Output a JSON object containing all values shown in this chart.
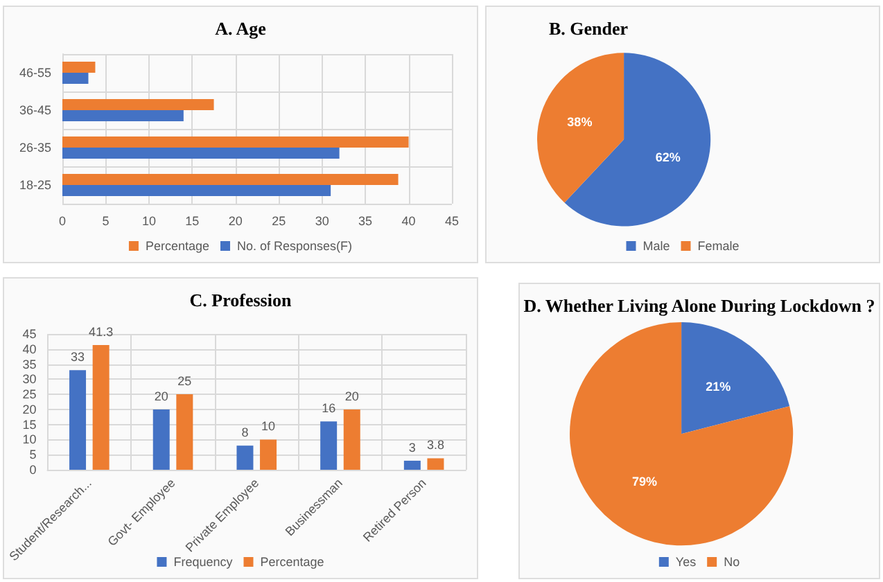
{
  "chart_data": [
    {
      "type": "bar",
      "title": "A. Age",
      "orientation": "horizontal",
      "categories": [
        "46-55",
        "36-45",
        "26-35",
        "18-25"
      ],
      "series": [
        {
          "name": "Percentage",
          "color": "#ed7d31",
          "values": [
            3.8,
            17.5,
            40,
            38.8
          ]
        },
        {
          "name": "No. of Responses(F)",
          "color": "#4472c4",
          "values": [
            3,
            14,
            32,
            31
          ]
        }
      ],
      "xlim": [
        0,
        45
      ],
      "xticks": [
        0,
        5,
        10,
        15,
        20,
        25,
        30,
        35,
        40,
        45
      ],
      "grid": true,
      "legend": "bottom"
    },
    {
      "type": "pie",
      "title": "B. Gender",
      "categories": [
        "Male",
        "Female"
      ],
      "values": [
        62,
        38
      ],
      "colors": [
        "#4472c4",
        "#ed7d31"
      ],
      "value_labels": [
        "62%",
        "38%"
      ],
      "legend": "bottom"
    },
    {
      "type": "bar",
      "title": "C. Profession",
      "categories": [
        "Student/Research...",
        "Govt- Employee",
        "Private Employee",
        "Businessman",
        "Retired Person"
      ],
      "series": [
        {
          "name": "Frequency",
          "color": "#4472c4",
          "values": [
            33,
            20,
            8,
            16,
            3
          ]
        },
        {
          "name": "Percentage",
          "color": "#ed7d31",
          "values": [
            41.3,
            25,
            10,
            20,
            3.8
          ]
        }
      ],
      "ylim": [
        0,
        45
      ],
      "yticks": [
        0,
        5,
        10,
        15,
        20,
        25,
        30,
        35,
        40,
        45
      ],
      "grid": true,
      "legend": "bottom",
      "data_labels": true
    },
    {
      "type": "pie",
      "title": "D. Whether Living Alone During Lockdown ?",
      "categories": [
        "Yes",
        "No"
      ],
      "values": [
        21,
        79
      ],
      "colors": [
        "#4472c4",
        "#ed7d31"
      ],
      "value_labels": [
        "21%",
        "79%"
      ],
      "legend": "bottom"
    }
  ]
}
